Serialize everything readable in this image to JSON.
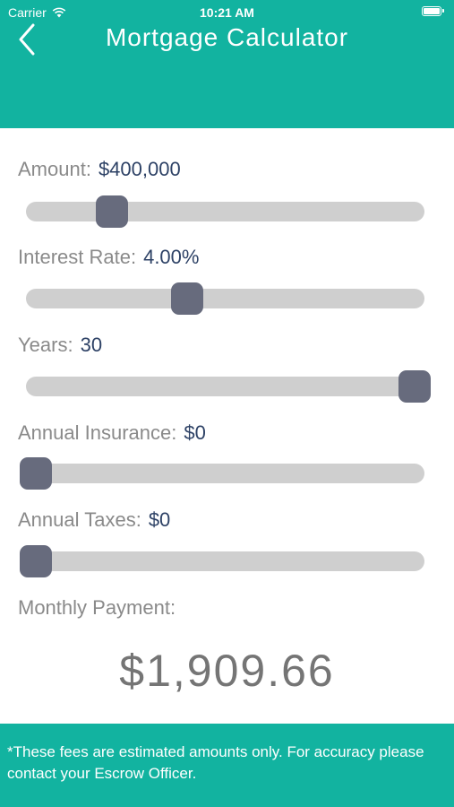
{
  "status_bar": {
    "carrier": "Carrier",
    "time": "10:21 AM",
    "wifi_icon": "wifi-icon",
    "battery_icon": "battery-icon"
  },
  "header": {
    "title": "Mortgage Calculator",
    "back_icon": "chevron-left-icon",
    "background": "#12b3a0"
  },
  "fields": [
    {
      "label": "Amount:",
      "value": "$400,000",
      "slider_fraction": 0.2
    },
    {
      "label": "Interest Rate:",
      "value": "4.00%",
      "slider_fraction": 0.4
    },
    {
      "label": "Years:",
      "value": "30",
      "slider_fraction": 1.0
    },
    {
      "label": "Annual Insurance:",
      "value": "$0",
      "slider_fraction": 0.0
    },
    {
      "label": "Annual Taxes:",
      "value": "$0",
      "slider_fraction": 0.0
    }
  ],
  "result": {
    "label": "Monthly Payment:",
    "value": "$1,909.66"
  },
  "footer": {
    "text": "*These fees are estimated amounts only. For accuracy please contact your Escrow Officer."
  },
  "colors": {
    "accent": "#12b3a0",
    "thumb": "#676b7d",
    "track": "#cfcfcf",
    "value_text": "#2e4266",
    "label_text": "#8a8a8a"
  }
}
